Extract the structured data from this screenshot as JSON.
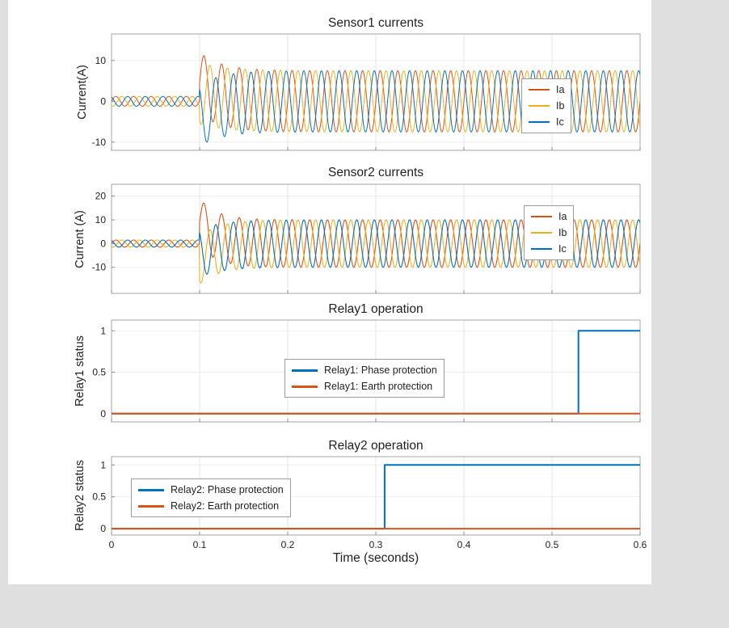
{
  "figure": {
    "xlabel": "Time (seconds)",
    "xlim": [
      0,
      0.6
    ],
    "xticks": [
      0,
      0.1,
      0.2,
      0.3,
      0.4,
      0.5,
      0.6
    ],
    "xtick_labels": [
      "0",
      "0.1",
      "0.2",
      "0.3",
      "0.4",
      "0.5",
      "0.6"
    ],
    "background": "#ffffff",
    "window_background": "#dfdfdf",
    "grid_color": "#e4e4e4",
    "axes_color": "#a6a6a6",
    "text_color": "#1f1f1f"
  },
  "chart_data": [
    {
      "type": "line",
      "title": "Sensor1 currents",
      "ylabel": "Current(A)",
      "xlim": [
        0,
        0.6
      ],
      "ylim": [
        -12,
        16.5
      ],
      "yticks": [
        -10,
        0,
        10
      ],
      "ytick_labels": [
        "-10",
        "0",
        "10"
      ],
      "xticklabels_visible": false,
      "grid": true,
      "legend_position": "right",
      "fault_time": 0.1,
      "freq_hz": 50,
      "series": [
        {
          "name": "Ia",
          "color": "#D95319",
          "kind": "fault_sine",
          "phase_deg": 0,
          "pre_amp": 1.2,
          "post_amp": 7.5,
          "dc": 4.5,
          "tau": 0.025,
          "width": 1
        },
        {
          "name": "Ib",
          "color": "#EDB120",
          "kind": "fault_sine",
          "phase_deg": -120,
          "pre_amp": 1.2,
          "post_amp": 7.5,
          "dc": 2,
          "tau": 0.03,
          "width": 1
        },
        {
          "name": "Ic",
          "color": "#0072BD",
          "kind": "fault_sine",
          "phase_deg": 120,
          "pre_amp": 1.2,
          "post_amp": 7.5,
          "dc": -3.5,
          "tau": 0.025,
          "width": 1
        }
      ]
    },
    {
      "type": "line",
      "title": "Sensor2 currents",
      "ylabel": "Current (A)",
      "xlim": [
        0,
        0.6
      ],
      "ylim": [
        -21,
        25
      ],
      "yticks": [
        -10,
        0,
        10,
        20
      ],
      "ytick_labels": [
        "-10",
        "0",
        "10",
        "20"
      ],
      "xticklabels_visible": false,
      "grid": true,
      "legend_position": "right",
      "fault_time": 0.1,
      "freq_hz": 50,
      "series": [
        {
          "name": "Ia",
          "color": "#D95319",
          "kind": "fault_sine",
          "phase_deg": 0,
          "pre_amp": 1.5,
          "post_amp": 10,
          "dc": 9,
          "tau": 0.02,
          "width": 1.1
        },
        {
          "name": "Ib",
          "color": "#EDB120",
          "kind": "fault_sine",
          "phase_deg": -120,
          "pre_amp": 1.5,
          "post_amp": 10,
          "dc": -7,
          "tau": 0.022,
          "width": 1.1
        },
        {
          "name": "Ic",
          "color": "#0072BD",
          "kind": "fault_sine",
          "phase_deg": 120,
          "pre_amp": 1.5,
          "post_amp": 10,
          "dc": -4,
          "tau": 0.026,
          "width": 1.1
        }
      ]
    },
    {
      "type": "line",
      "title": "Relay1 operation",
      "ylabel": "Relay1 status",
      "xlim": [
        0,
        0.6
      ],
      "ylim": [
        -0.1,
        1.13
      ],
      "yticks": [
        0,
        0.5,
        1
      ],
      "ytick_labels": [
        "0",
        "0.5",
        "1"
      ],
      "xticklabels_visible": false,
      "grid": true,
      "legend_position": "center",
      "trip_time": 0.53,
      "series": [
        {
          "name": "Relay1: Phase protection",
          "color": "#0072BD",
          "kind": "step",
          "points": [
            [
              0,
              0
            ],
            [
              0.53,
              0
            ],
            [
              0.53,
              1
            ],
            [
              0.6,
              1
            ]
          ],
          "width": 2
        },
        {
          "name": "Relay1: Earth protection",
          "color": "#D95319",
          "kind": "step",
          "points": [
            [
              0,
              0
            ],
            [
              0.6,
              0
            ]
          ],
          "width": 2
        }
      ]
    },
    {
      "type": "line",
      "title": "Relay2 operation",
      "ylabel": "Relay2 status",
      "xlim": [
        0,
        0.6
      ],
      "ylim": [
        -0.1,
        1.13
      ],
      "yticks": [
        0,
        0.5,
        1
      ],
      "ytick_labels": [
        "0",
        "0.5",
        "1"
      ],
      "xticklabels_visible": true,
      "grid": true,
      "legend_position": "left",
      "trip_time": 0.31,
      "series": [
        {
          "name": "Relay2: Phase protection",
          "color": "#0072BD",
          "kind": "step",
          "points": [
            [
              0,
              0
            ],
            [
              0.31,
              0
            ],
            [
              0.31,
              1
            ],
            [
              0.6,
              1
            ]
          ],
          "width": 2
        },
        {
          "name": "Relay2: Earth protection",
          "color": "#D95319",
          "kind": "step",
          "points": [
            [
              0,
              0
            ],
            [
              0.6,
              0
            ]
          ],
          "width": 2
        }
      ]
    }
  ]
}
